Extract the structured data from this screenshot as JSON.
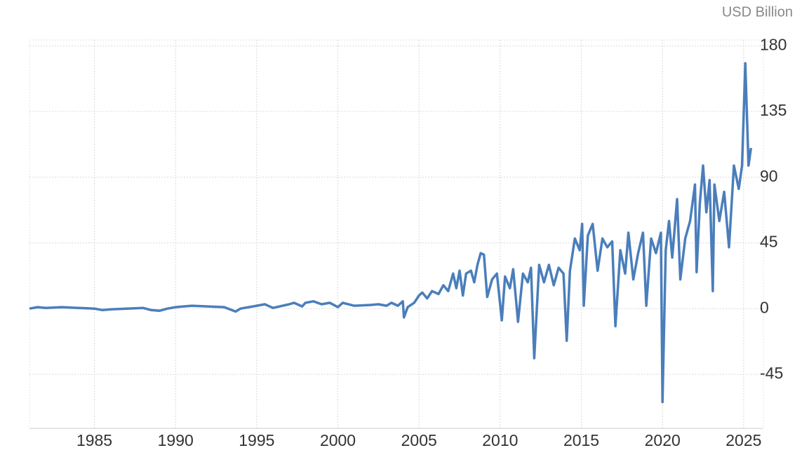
{
  "chart_data": {
    "type": "line",
    "unit_label": "USD Billion",
    "color": "#4a7ebb",
    "grid": true,
    "x": [
      1981,
      1981.5,
      1982,
      1983,
      1984,
      1985,
      1985.5,
      1986,
      1987,
      1988,
      1988.5,
      1989,
      1989.5,
      1990,
      1991,
      1992,
      1993,
      1993.7,
      1994,
      1995,
      1995.5,
      1996,
      1997,
      1997.3,
      1997.8,
      1998,
      1998.5,
      1999,
      1999.5,
      2000,
      2000.3,
      2001,
      2002,
      2002.5,
      2003,
      2003.3,
      2003.7,
      2004,
      2004.07,
      2004.3,
      2004.7,
      2005,
      2005.2,
      2005.5,
      2005.8,
      2006.2,
      2006.5,
      2006.8,
      2007.1,
      2007.3,
      2007.5,
      2007.7,
      2007.9,
      2008.2,
      2008.4,
      2008.6,
      2008.8,
      2009,
      2009.2,
      2009.5,
      2009.8,
      2010.1,
      2010.3,
      2010.6,
      2010.8,
      2011.1,
      2011.4,
      2011.7,
      2011.9,
      2012.1,
      2012.4,
      2012.7,
      2013,
      2013.3,
      2013.6,
      2013.9,
      2014.1,
      2014.3,
      2014.6,
      2014.9,
      2015.05,
      2015.15,
      2015.4,
      2015.7,
      2016,
      2016.3,
      2016.6,
      2016.9,
      2017.1,
      2017.4,
      2017.7,
      2017.9,
      2018.2,
      2018.5,
      2018.8,
      2019,
      2019.3,
      2019.6,
      2019.9,
      2020,
      2020.2,
      2020.4,
      2020.6,
      2020.9,
      2021.1,
      2021.4,
      2021.7,
      2022,
      2022.1,
      2022.3,
      2022.5,
      2022.7,
      2022.9,
      2023.1,
      2023.2,
      2023.5,
      2023.8,
      2024.1,
      2024.4,
      2024.7,
      2024.9,
      2025.1,
      2025.3,
      2025.45
    ],
    "values": [
      0,
      1,
      0.5,
      1,
      0.5,
      0,
      -1,
      -0.5,
      0,
      0.5,
      -1,
      -1.5,
      0,
      1,
      2,
      1.5,
      1,
      -2,
      0,
      2,
      3,
      0.5,
      3,
      4,
      1.5,
      4,
      5,
      3,
      4,
      1,
      4,
      2,
      2.5,
      3,
      2,
      4,
      2,
      5,
      -6,
      1,
      4,
      9,
      11,
      7,
      12,
      10,
      16,
      12,
      24,
      14,
      26,
      9,
      24,
      26,
      18,
      30,
      38,
      37,
      8,
      20,
      24,
      -8,
      22,
      14,
      27,
      -9,
      24,
      18,
      28,
      -34,
      30,
      18,
      30,
      16,
      28,
      24,
      -22,
      26,
      48,
      40,
      58,
      2,
      50,
      58,
      26,
      48,
      42,
      46,
      -12,
      40,
      24,
      52,
      20,
      38,
      52,
      2,
      48,
      38,
      52,
      -64,
      40,
      60,
      35,
      75,
      20,
      48,
      60,
      85,
      25,
      72,
      98,
      66,
      88,
      12,
      85,
      60,
      80,
      42,
      98,
      82,
      98,
      168,
      98,
      110
    ],
    "xlim": [
      1981,
      2026
    ],
    "xticks": [
      1985,
      1990,
      1995,
      2000,
      2005,
      2010,
      2015,
      2020,
      2025
    ],
    "ylim": [
      -82,
      184
    ],
    "yticks": [
      -45,
      0,
      45,
      90,
      135,
      180
    ]
  }
}
